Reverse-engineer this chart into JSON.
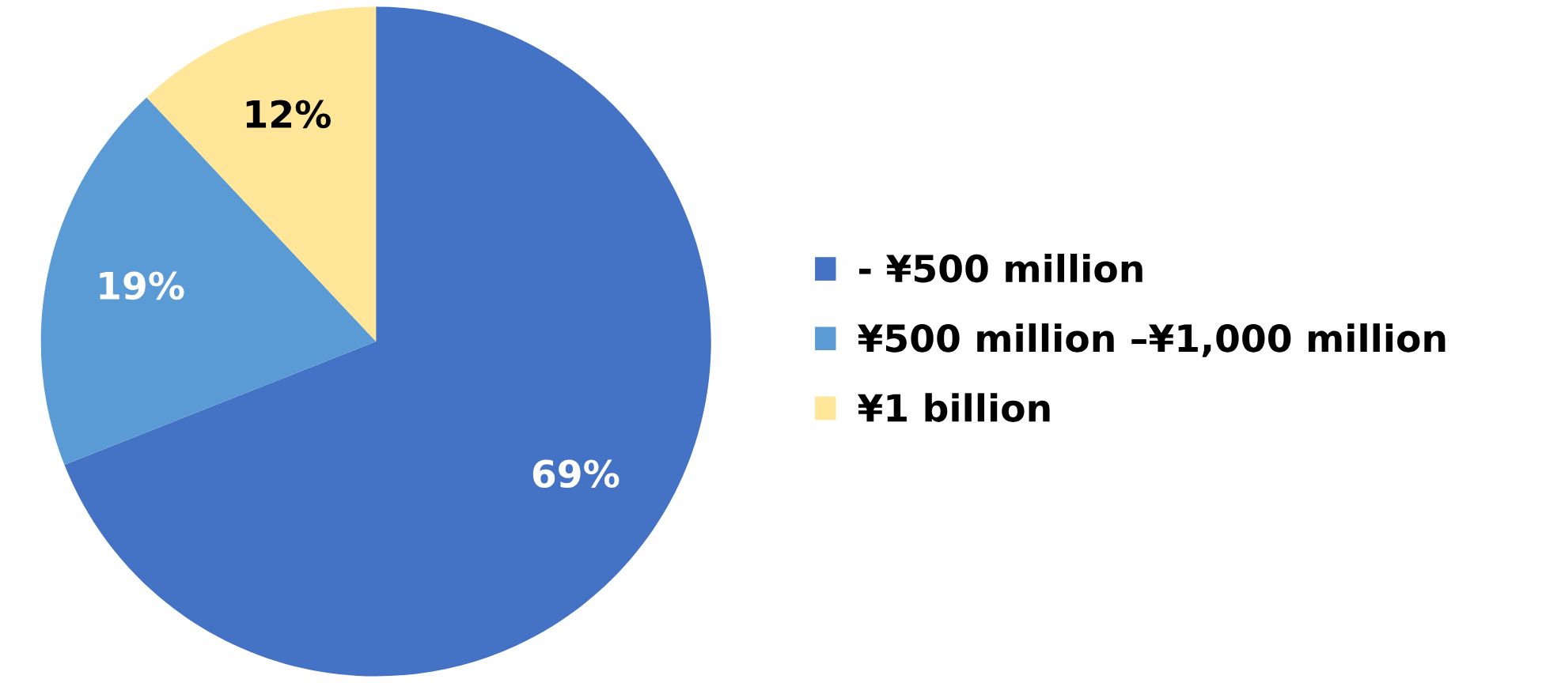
{
  "chart_data": {
    "type": "pie",
    "categories": [
      "- ¥500 million",
      "¥500 million –¥1,000 million",
      "¥1 billion"
    ],
    "values": [
      69,
      19,
      12
    ],
    "value_labels": [
      "69%",
      "19%",
      "12%"
    ],
    "colors": [
      "#4472c4",
      "#5b9bd5",
      "#ffe699"
    ],
    "legend": "right"
  }
}
